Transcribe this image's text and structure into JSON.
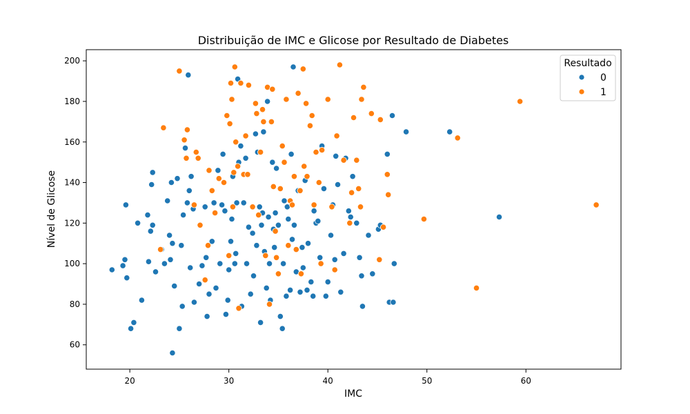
{
  "chart_data": {
    "type": "scatter",
    "title": "Distribuição de IMC e Glicose por Resultado de Diabetes",
    "xlabel": "IMC",
    "ylabel": "Nível de Glicose",
    "xlim": [
      15.6,
      69.6
    ],
    "ylim": [
      48.0,
      205.5
    ],
    "xticks": [
      20,
      30,
      40,
      50,
      60
    ],
    "yticks": [
      60,
      80,
      100,
      120,
      140,
      160,
      180,
      200
    ],
    "grid": false,
    "legend": {
      "title": "Resultado",
      "placement": "top-right"
    },
    "series": [
      {
        "name": "0",
        "color": "#1f77b4",
        "points": [
          [
            18.2,
            97
          ],
          [
            19.5,
            102
          ],
          [
            19.6,
            129
          ],
          [
            19.3,
            99
          ],
          [
            19.7,
            93
          ],
          [
            20.1,
            68
          ],
          [
            20.4,
            71
          ],
          [
            20.8,
            120
          ],
          [
            21.2,
            82
          ],
          [
            21.8,
            124
          ],
          [
            22.1,
            116
          ],
          [
            22.3,
            119
          ],
          [
            22.2,
            139
          ],
          [
            22.3,
            145
          ],
          [
            21.9,
            101
          ],
          [
            22.6,
            96
          ],
          [
            23.2,
            107
          ],
          [
            23.5,
            100
          ],
          [
            23.8,
            131
          ],
          [
            24.0,
            114
          ],
          [
            24.2,
            140
          ],
          [
            24.5,
            89
          ],
          [
            24.3,
            110
          ],
          [
            24.1,
            102
          ],
          [
            24.3,
            56
          ],
          [
            24.8,
            142
          ],
          [
            25.0,
            68
          ],
          [
            25.2,
            109
          ],
          [
            25.3,
            79
          ],
          [
            25.4,
            124
          ],
          [
            25.6,
            157
          ],
          [
            25.8,
            130
          ],
          [
            26.0,
            136
          ],
          [
            25.9,
            193
          ],
          [
            26.2,
            143
          ],
          [
            26.4,
            127
          ],
          [
            26.1,
            98
          ],
          [
            26.5,
            81
          ],
          [
            27.0,
            90
          ],
          [
            27.3,
            99
          ],
          [
            27.6,
            128
          ],
          [
            27.7,
            103
          ],
          [
            27.8,
            74
          ],
          [
            28.0,
            85
          ],
          [
            28.3,
            111
          ],
          [
            28.5,
            130
          ],
          [
            28.7,
            88
          ],
          [
            28.9,
            146
          ],
          [
            29.1,
            100
          ],
          [
            29.3,
            129
          ],
          [
            29.4,
            154
          ],
          [
            29.6,
            126
          ],
          [
            29.7,
            75
          ],
          [
            29.9,
            82
          ],
          [
            30.0,
            97
          ],
          [
            30.2,
            111
          ],
          [
            30.3,
            122
          ],
          [
            30.4,
            143
          ],
          [
            30.6,
            100
          ],
          [
            30.7,
            105
          ],
          [
            30.8,
            130
          ],
          [
            30.9,
            191
          ],
          [
            31.0,
            150
          ],
          [
            31.2,
            158
          ],
          [
            31.3,
            79
          ],
          [
            31.5,
            130
          ],
          [
            31.7,
            152
          ],
          [
            31.8,
            100
          ],
          [
            32.0,
            118
          ],
          [
            32.2,
            85
          ],
          [
            32.4,
            115
          ],
          [
            32.5,
            94
          ],
          [
            32.7,
            164
          ],
          [
            32.8,
            109
          ],
          [
            32.9,
            155
          ],
          [
            33.1,
            128
          ],
          [
            33.2,
            71
          ],
          [
            33.3,
            119
          ],
          [
            33.4,
            125
          ],
          [
            33.5,
            165
          ],
          [
            33.6,
            106
          ],
          [
            33.8,
            88
          ],
          [
            33.9,
            180
          ],
          [
            34.0,
            123
          ],
          [
            34.1,
            100
          ],
          [
            34.2,
            82
          ],
          [
            34.4,
            150
          ],
          [
            34.5,
            117
          ],
          [
            34.6,
            108
          ],
          [
            34.7,
            125
          ],
          [
            34.8,
            147
          ],
          [
            35.0,
            119
          ],
          [
            35.2,
            74
          ],
          [
            35.4,
            68
          ],
          [
            35.5,
            100
          ],
          [
            35.6,
            131
          ],
          [
            35.8,
            84
          ],
          [
            35.9,
            128
          ],
          [
            36.0,
            122
          ],
          [
            36.2,
            87
          ],
          [
            36.3,
            154
          ],
          [
            36.4,
            112
          ],
          [
            36.5,
            197
          ],
          [
            36.6,
            119
          ],
          [
            36.8,
            96
          ],
          [
            37.0,
            136
          ],
          [
            37.2,
            86
          ],
          [
            37.4,
            108
          ],
          [
            37.5,
            98
          ],
          [
            37.7,
            141
          ],
          [
            37.9,
            87
          ],
          [
            38.0,
            110
          ],
          [
            38.3,
            91
          ],
          [
            38.5,
            84
          ],
          [
            38.6,
            126
          ],
          [
            38.8,
            120
          ],
          [
            39.0,
            121
          ],
          [
            39.2,
            103
          ],
          [
            39.4,
            158
          ],
          [
            39.6,
            137
          ],
          [
            39.8,
            84
          ],
          [
            40.0,
            91
          ],
          [
            40.3,
            114
          ],
          [
            40.5,
            129
          ],
          [
            40.7,
            102
          ],
          [
            40.8,
            153
          ],
          [
            41.0,
            139
          ],
          [
            41.3,
            86
          ],
          [
            41.6,
            105
          ],
          [
            41.8,
            152
          ],
          [
            42.1,
            126
          ],
          [
            42.3,
            123
          ],
          [
            42.5,
            143
          ],
          [
            42.9,
            120
          ],
          [
            43.2,
            103
          ],
          [
            43.4,
            94
          ],
          [
            43.5,
            79
          ],
          [
            44.1,
            114
          ],
          [
            44.5,
            95
          ],
          [
            45.1,
            117
          ],
          [
            45.3,
            119
          ],
          [
            46.0,
            154
          ],
          [
            46.2,
            81
          ],
          [
            46.5,
            173
          ],
          [
            46.6,
            81
          ],
          [
            46.7,
            100
          ],
          [
            47.9,
            165
          ],
          [
            52.3,
            165
          ],
          [
            57.3,
            123
          ]
        ]
      },
      {
        "name": "1",
        "color": "#ff7f0e",
        "points": [
          [
            23.1,
            107
          ],
          [
            23.4,
            167
          ],
          [
            25.0,
            195
          ],
          [
            25.5,
            161
          ],
          [
            25.7,
            152
          ],
          [
            25.8,
            166
          ],
          [
            26.5,
            129
          ],
          [
            26.7,
            155
          ],
          [
            26.9,
            152
          ],
          [
            27.1,
            119
          ],
          [
            27.6,
            92
          ],
          [
            27.9,
            109
          ],
          [
            28.0,
            146
          ],
          [
            28.3,
            136
          ],
          [
            28.6,
            125
          ],
          [
            29.0,
            142
          ],
          [
            29.5,
            140
          ],
          [
            29.8,
            173
          ],
          [
            30.0,
            104
          ],
          [
            30.1,
            169
          ],
          [
            30.2,
            189
          ],
          [
            30.3,
            181
          ],
          [
            30.4,
            128
          ],
          [
            30.5,
            145
          ],
          [
            30.6,
            197
          ],
          [
            30.7,
            160
          ],
          [
            30.9,
            148
          ],
          [
            31.0,
            78
          ],
          [
            31.2,
            189
          ],
          [
            31.5,
            144
          ],
          [
            31.7,
            163
          ],
          [
            31.9,
            144
          ],
          [
            32.0,
            188
          ],
          [
            32.4,
            128
          ],
          [
            32.7,
            179
          ],
          [
            32.8,
            174
          ],
          [
            33.0,
            124
          ],
          [
            33.2,
            155
          ],
          [
            33.4,
            176
          ],
          [
            33.5,
            170
          ],
          [
            33.7,
            104
          ],
          [
            33.9,
            187
          ],
          [
            34.1,
            80
          ],
          [
            34.3,
            170
          ],
          [
            34.4,
            186
          ],
          [
            34.5,
            138
          ],
          [
            34.7,
            116
          ],
          [
            34.8,
            103
          ],
          [
            35.0,
            95
          ],
          [
            35.2,
            137
          ],
          [
            35.4,
            158
          ],
          [
            35.6,
            150
          ],
          [
            35.8,
            181
          ],
          [
            36.0,
            109
          ],
          [
            36.2,
            131
          ],
          [
            36.4,
            129
          ],
          [
            36.6,
            143
          ],
          [
            36.8,
            107
          ],
          [
            37.0,
            184
          ],
          [
            37.2,
            136
          ],
          [
            37.3,
            95
          ],
          [
            37.5,
            196
          ],
          [
            37.6,
            148
          ],
          [
            37.8,
            179
          ],
          [
            37.9,
            143
          ],
          [
            38.2,
            168
          ],
          [
            38.4,
            173
          ],
          [
            38.6,
            129
          ],
          [
            38.8,
            155
          ],
          [
            39.1,
            140
          ],
          [
            39.3,
            100
          ],
          [
            39.4,
            156
          ],
          [
            40.0,
            181
          ],
          [
            40.4,
            128
          ],
          [
            40.7,
            97
          ],
          [
            40.9,
            163
          ],
          [
            41.2,
            198
          ],
          [
            41.6,
            151
          ],
          [
            42.2,
            120
          ],
          [
            42.4,
            135
          ],
          [
            42.6,
            172
          ],
          [
            42.9,
            151
          ],
          [
            43.1,
            137
          ],
          [
            43.3,
            128
          ],
          [
            43.4,
            181
          ],
          [
            43.6,
            187
          ],
          [
            44.4,
            174
          ],
          [
            45.2,
            102
          ],
          [
            45.3,
            171
          ],
          [
            45.6,
            118
          ],
          [
            46.0,
            144
          ],
          [
            46.1,
            134
          ],
          [
            49.7,
            122
          ],
          [
            53.1,
            162
          ],
          [
            55.0,
            88
          ],
          [
            59.4,
            180
          ],
          [
            67.1,
            129
          ]
        ]
      }
    ]
  }
}
